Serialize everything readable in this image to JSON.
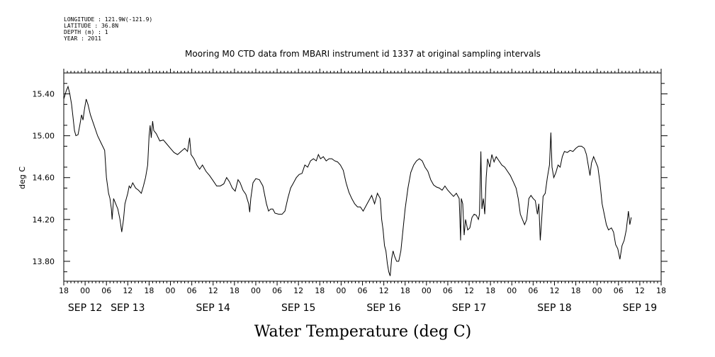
{
  "header": {
    "longitude": "LONGITUDE : 121.9W(-121.9)",
    "latitude": "LATITUDE : 36.8N",
    "depth": "DEPTH (m) : 1",
    "year": "YEAR : 2011"
  },
  "chart_data": {
    "type": "line",
    "title": "Mooring M0 CTD data from MBARI instrument id 1337 at original sampling intervals",
    "xlabel": "Water Temperature (deg C)",
    "ylabel": "deg C",
    "ylim": [
      13.61,
      15.6
    ],
    "xlim_hours": [
      0,
      168
    ],
    "grid": false,
    "yticks": [
      {
        "v": 15.4,
        "label": "15.40"
      },
      {
        "v": 15.0,
        "label": "15.00"
      },
      {
        "v": 14.6,
        "label": "14.60"
      },
      {
        "v": 14.2,
        "label": "14.20"
      },
      {
        "v": 13.8,
        "label": "13.80"
      }
    ],
    "hour_ticks": [
      "18",
      "00",
      "06",
      "12",
      "18",
      "00",
      "06",
      "12",
      "18",
      "00",
      "06",
      "12",
      "18",
      "00",
      "06",
      "12",
      "18",
      "00",
      "06",
      "12",
      "18",
      "00",
      "06",
      "12",
      "18",
      "00",
      "06",
      "12",
      "18"
    ],
    "date_labels": [
      {
        "label": "SEP 12",
        "hour": 6
      },
      {
        "label": "SEP 13",
        "hour": 18
      },
      {
        "label": "SEP 14",
        "hour": 42
      },
      {
        "label": "SEP 15",
        "hour": 66
      },
      {
        "label": "SEP 16",
        "hour": 90
      },
      {
        "label": "SEP 17",
        "hour": 114
      },
      {
        "label": "SEP 18",
        "hour": 138
      },
      {
        "label": "SEP 19",
        "hour": 162
      }
    ],
    "series": [
      {
        "x_unit": "hours since SEP 11 18:00",
        "points": [
          [
            0,
            15.35
          ],
          [
            0.7,
            15.43
          ],
          [
            1.2,
            15.47
          ],
          [
            1.7,
            15.4
          ],
          [
            2.2,
            15.3
          ],
          [
            2.6,
            15.18
          ],
          [
            3.0,
            15.05
          ],
          [
            3.4,
            15.0
          ],
          [
            4.0,
            15.01
          ],
          [
            4.5,
            15.1
          ],
          [
            5.0,
            15.2
          ],
          [
            5.4,
            15.15
          ],
          [
            5.8,
            15.25
          ],
          [
            6.3,
            15.35
          ],
          [
            6.8,
            15.3
          ],
          [
            7.5,
            15.2
          ],
          [
            8.5,
            15.1
          ],
          [
            9.5,
            15.0
          ],
          [
            10.5,
            14.93
          ],
          [
            11.5,
            14.86
          ],
          [
            12.0,
            14.6
          ],
          [
            12.6,
            14.45
          ],
          [
            13.0,
            14.4
          ],
          [
            13.4,
            14.3
          ],
          [
            13.6,
            14.2
          ],
          [
            14.0,
            14.4
          ],
          [
            14.6,
            14.35
          ],
          [
            15.2,
            14.3
          ],
          [
            15.8,
            14.2
          ],
          [
            16.3,
            14.08
          ],
          [
            16.8,
            14.2
          ],
          [
            17.2,
            14.35
          ],
          [
            17.6,
            14.4
          ],
          [
            18.0,
            14.45
          ],
          [
            18.4,
            14.52
          ],
          [
            18.8,
            14.5
          ],
          [
            19.4,
            14.55
          ],
          [
            20.2,
            14.5
          ],
          [
            21.0,
            14.48
          ],
          [
            21.8,
            14.45
          ],
          [
            22.4,
            14.52
          ],
          [
            23.0,
            14.6
          ],
          [
            23.6,
            14.72
          ],
          [
            24.0,
            15.0
          ],
          [
            24.3,
            15.1
          ],
          [
            24.6,
            14.98
          ],
          [
            25.0,
            15.14
          ],
          [
            25.3,
            15.05
          ],
          [
            26.0,
            15.02
          ],
          [
            27.0,
            14.95
          ],
          [
            28.0,
            14.96
          ],
          [
            29.0,
            14.92
          ],
          [
            30.0,
            14.88
          ],
          [
            31.0,
            14.84
          ],
          [
            32.0,
            14.82
          ],
          [
            33.0,
            14.85
          ],
          [
            34.0,
            14.88
          ],
          [
            34.8,
            14.85
          ],
          [
            35.4,
            14.98
          ],
          [
            35.8,
            14.82
          ],
          [
            36.6,
            14.78
          ],
          [
            37.4,
            14.72
          ],
          [
            38.2,
            14.68
          ],
          [
            39.0,
            14.72
          ],
          [
            40.0,
            14.66
          ],
          [
            41.0,
            14.62
          ],
          [
            42.0,
            14.57
          ],
          [
            43.0,
            14.52
          ],
          [
            44.0,
            14.52
          ],
          [
            45.0,
            14.54
          ],
          [
            45.8,
            14.6
          ],
          [
            46.6,
            14.56
          ],
          [
            47.4,
            14.5
          ],
          [
            48.2,
            14.47
          ],
          [
            49.0,
            14.58
          ],
          [
            49.6,
            14.55
          ],
          [
            50.4,
            14.48
          ],
          [
            51.2,
            14.44
          ],
          [
            52.0,
            14.35
          ],
          [
            52.3,
            14.27
          ],
          [
            52.6,
            14.4
          ],
          [
            53.2,
            14.55
          ],
          [
            54.0,
            14.59
          ],
          [
            55.0,
            14.58
          ],
          [
            56.0,
            14.52
          ],
          [
            57.0,
            14.35
          ],
          [
            57.6,
            14.28
          ],
          [
            58.2,
            14.3
          ],
          [
            58.8,
            14.3
          ],
          [
            59.4,
            14.26
          ],
          [
            60.4,
            14.25
          ],
          [
            61.4,
            14.25
          ],
          [
            62.2,
            14.28
          ],
          [
            63.0,
            14.4
          ],
          [
            63.8,
            14.5
          ],
          [
            64.6,
            14.55
          ],
          [
            65.4,
            14.6
          ],
          [
            66.2,
            14.63
          ],
          [
            67.0,
            14.64
          ],
          [
            67.8,
            14.72
          ],
          [
            68.6,
            14.7
          ],
          [
            69.4,
            14.76
          ],
          [
            70.2,
            14.78
          ],
          [
            71.0,
            14.76
          ],
          [
            71.6,
            14.82
          ],
          [
            72.2,
            14.78
          ],
          [
            73.0,
            14.8
          ],
          [
            73.8,
            14.76
          ],
          [
            74.6,
            14.78
          ],
          [
            75.4,
            14.78
          ],
          [
            76.2,
            14.76
          ],
          [
            77.0,
            14.75
          ],
          [
            77.8,
            14.72
          ],
          [
            78.6,
            14.67
          ],
          [
            79.4,
            14.55
          ],
          [
            80.2,
            14.46
          ],
          [
            81.0,
            14.4
          ],
          [
            81.8,
            14.35
          ],
          [
            82.6,
            14.32
          ],
          [
            83.4,
            14.32
          ],
          [
            84.2,
            14.28
          ],
          [
            85.0,
            14.33
          ],
          [
            85.8,
            14.38
          ],
          [
            86.6,
            14.43
          ],
          [
            87.4,
            14.35
          ],
          [
            88.2,
            14.45
          ],
          [
            89.0,
            14.4
          ],
          [
            89.4,
            14.2
          ],
          [
            89.8,
            14.1
          ],
          [
            90.2,
            13.95
          ],
          [
            90.6,
            13.9
          ],
          [
            91.0,
            13.78
          ],
          [
            91.4,
            13.7
          ],
          [
            91.8,
            13.66
          ],
          [
            92.2,
            13.82
          ],
          [
            92.6,
            13.9
          ],
          [
            93.0,
            13.85
          ],
          [
            93.6,
            13.8
          ],
          [
            94.2,
            13.8
          ],
          [
            94.8,
            13.9
          ],
          [
            95.4,
            14.1
          ],
          [
            96.0,
            14.3
          ],
          [
            96.8,
            14.5
          ],
          [
            97.6,
            14.65
          ],
          [
            98.4,
            14.72
          ],
          [
            99.2,
            14.76
          ],
          [
            100.0,
            14.78
          ],
          [
            100.8,
            14.76
          ],
          [
            101.6,
            14.7
          ],
          [
            102.4,
            14.66
          ],
          [
            103.2,
            14.58
          ],
          [
            104.0,
            14.53
          ],
          [
            104.8,
            14.51
          ],
          [
            105.6,
            14.5
          ],
          [
            106.4,
            14.48
          ],
          [
            107.2,
            14.52
          ],
          [
            108.0,
            14.48
          ],
          [
            108.8,
            14.45
          ],
          [
            109.6,
            14.42
          ],
          [
            110.4,
            14.45
          ],
          [
            111.2,
            14.4
          ],
          [
            111.6,
            14.0
          ],
          [
            111.8,
            14.4
          ],
          [
            112.2,
            14.35
          ],
          [
            112.6,
            14.05
          ],
          [
            113.0,
            14.2
          ],
          [
            113.6,
            14.1
          ],
          [
            114.2,
            14.12
          ],
          [
            114.8,
            14.22
          ],
          [
            115.4,
            14.25
          ],
          [
            116.0,
            14.24
          ],
          [
            116.6,
            14.2
          ],
          [
            116.9,
            14.25
          ],
          [
            117.3,
            14.85
          ],
          [
            117.6,
            14.3
          ],
          [
            118.0,
            14.4
          ],
          [
            118.4,
            14.25
          ],
          [
            118.8,
            14.6
          ],
          [
            119.2,
            14.78
          ],
          [
            119.8,
            14.7
          ],
          [
            120.4,
            14.82
          ],
          [
            121.0,
            14.75
          ],
          [
            121.6,
            14.8
          ],
          [
            122.4,
            14.76
          ],
          [
            123.2,
            14.72
          ],
          [
            124.0,
            14.7
          ],
          [
            124.8,
            14.66
          ],
          [
            125.6,
            14.62
          ],
          [
            126.4,
            14.56
          ],
          [
            127.2,
            14.5
          ],
          [
            127.8,
            14.4
          ],
          [
            128.4,
            14.25
          ],
          [
            129.0,
            14.2
          ],
          [
            129.6,
            14.15
          ],
          [
            130.2,
            14.2
          ],
          [
            130.8,
            14.4
          ],
          [
            131.4,
            14.43
          ],
          [
            132.0,
            14.4
          ],
          [
            132.6,
            14.38
          ],
          [
            133.2,
            14.25
          ],
          [
            133.6,
            14.35
          ],
          [
            134.0,
            14.0
          ],
          [
            134.4,
            14.2
          ],
          [
            134.8,
            14.42
          ],
          [
            135.4,
            14.45
          ],
          [
            136.0,
            14.6
          ],
          [
            136.6,
            14.72
          ],
          [
            137.0,
            15.03
          ],
          [
            137.3,
            14.7
          ],
          [
            137.8,
            14.6
          ],
          [
            138.4,
            14.65
          ],
          [
            139.0,
            14.72
          ],
          [
            139.6,
            14.7
          ],
          [
            140.2,
            14.8
          ],
          [
            140.8,
            14.85
          ],
          [
            141.6,
            14.84
          ],
          [
            142.4,
            14.86
          ],
          [
            143.2,
            14.85
          ],
          [
            144.0,
            14.88
          ],
          [
            144.8,
            14.9
          ],
          [
            145.6,
            14.9
          ],
          [
            146.4,
            14.88
          ],
          [
            147.0,
            14.82
          ],
          [
            147.6,
            14.7
          ],
          [
            148.0,
            14.62
          ],
          [
            148.4,
            14.74
          ],
          [
            149.0,
            14.8
          ],
          [
            149.6,
            14.75
          ],
          [
            150.2,
            14.7
          ],
          [
            150.8,
            14.55
          ],
          [
            151.4,
            14.35
          ],
          [
            152.0,
            14.25
          ],
          [
            152.6,
            14.15
          ],
          [
            153.2,
            14.1
          ],
          [
            154.0,
            14.12
          ],
          [
            154.6,
            14.08
          ],
          [
            155.2,
            13.96
          ],
          [
            155.8,
            13.92
          ],
          [
            156.4,
            13.82
          ],
          [
            157.0,
            13.95
          ],
          [
            157.6,
            14.0
          ],
          [
            158.2,
            14.1
          ],
          [
            158.8,
            14.28
          ],
          [
            159.2,
            14.15
          ],
          [
            159.6,
            14.22
          ]
        ]
      }
    ]
  }
}
